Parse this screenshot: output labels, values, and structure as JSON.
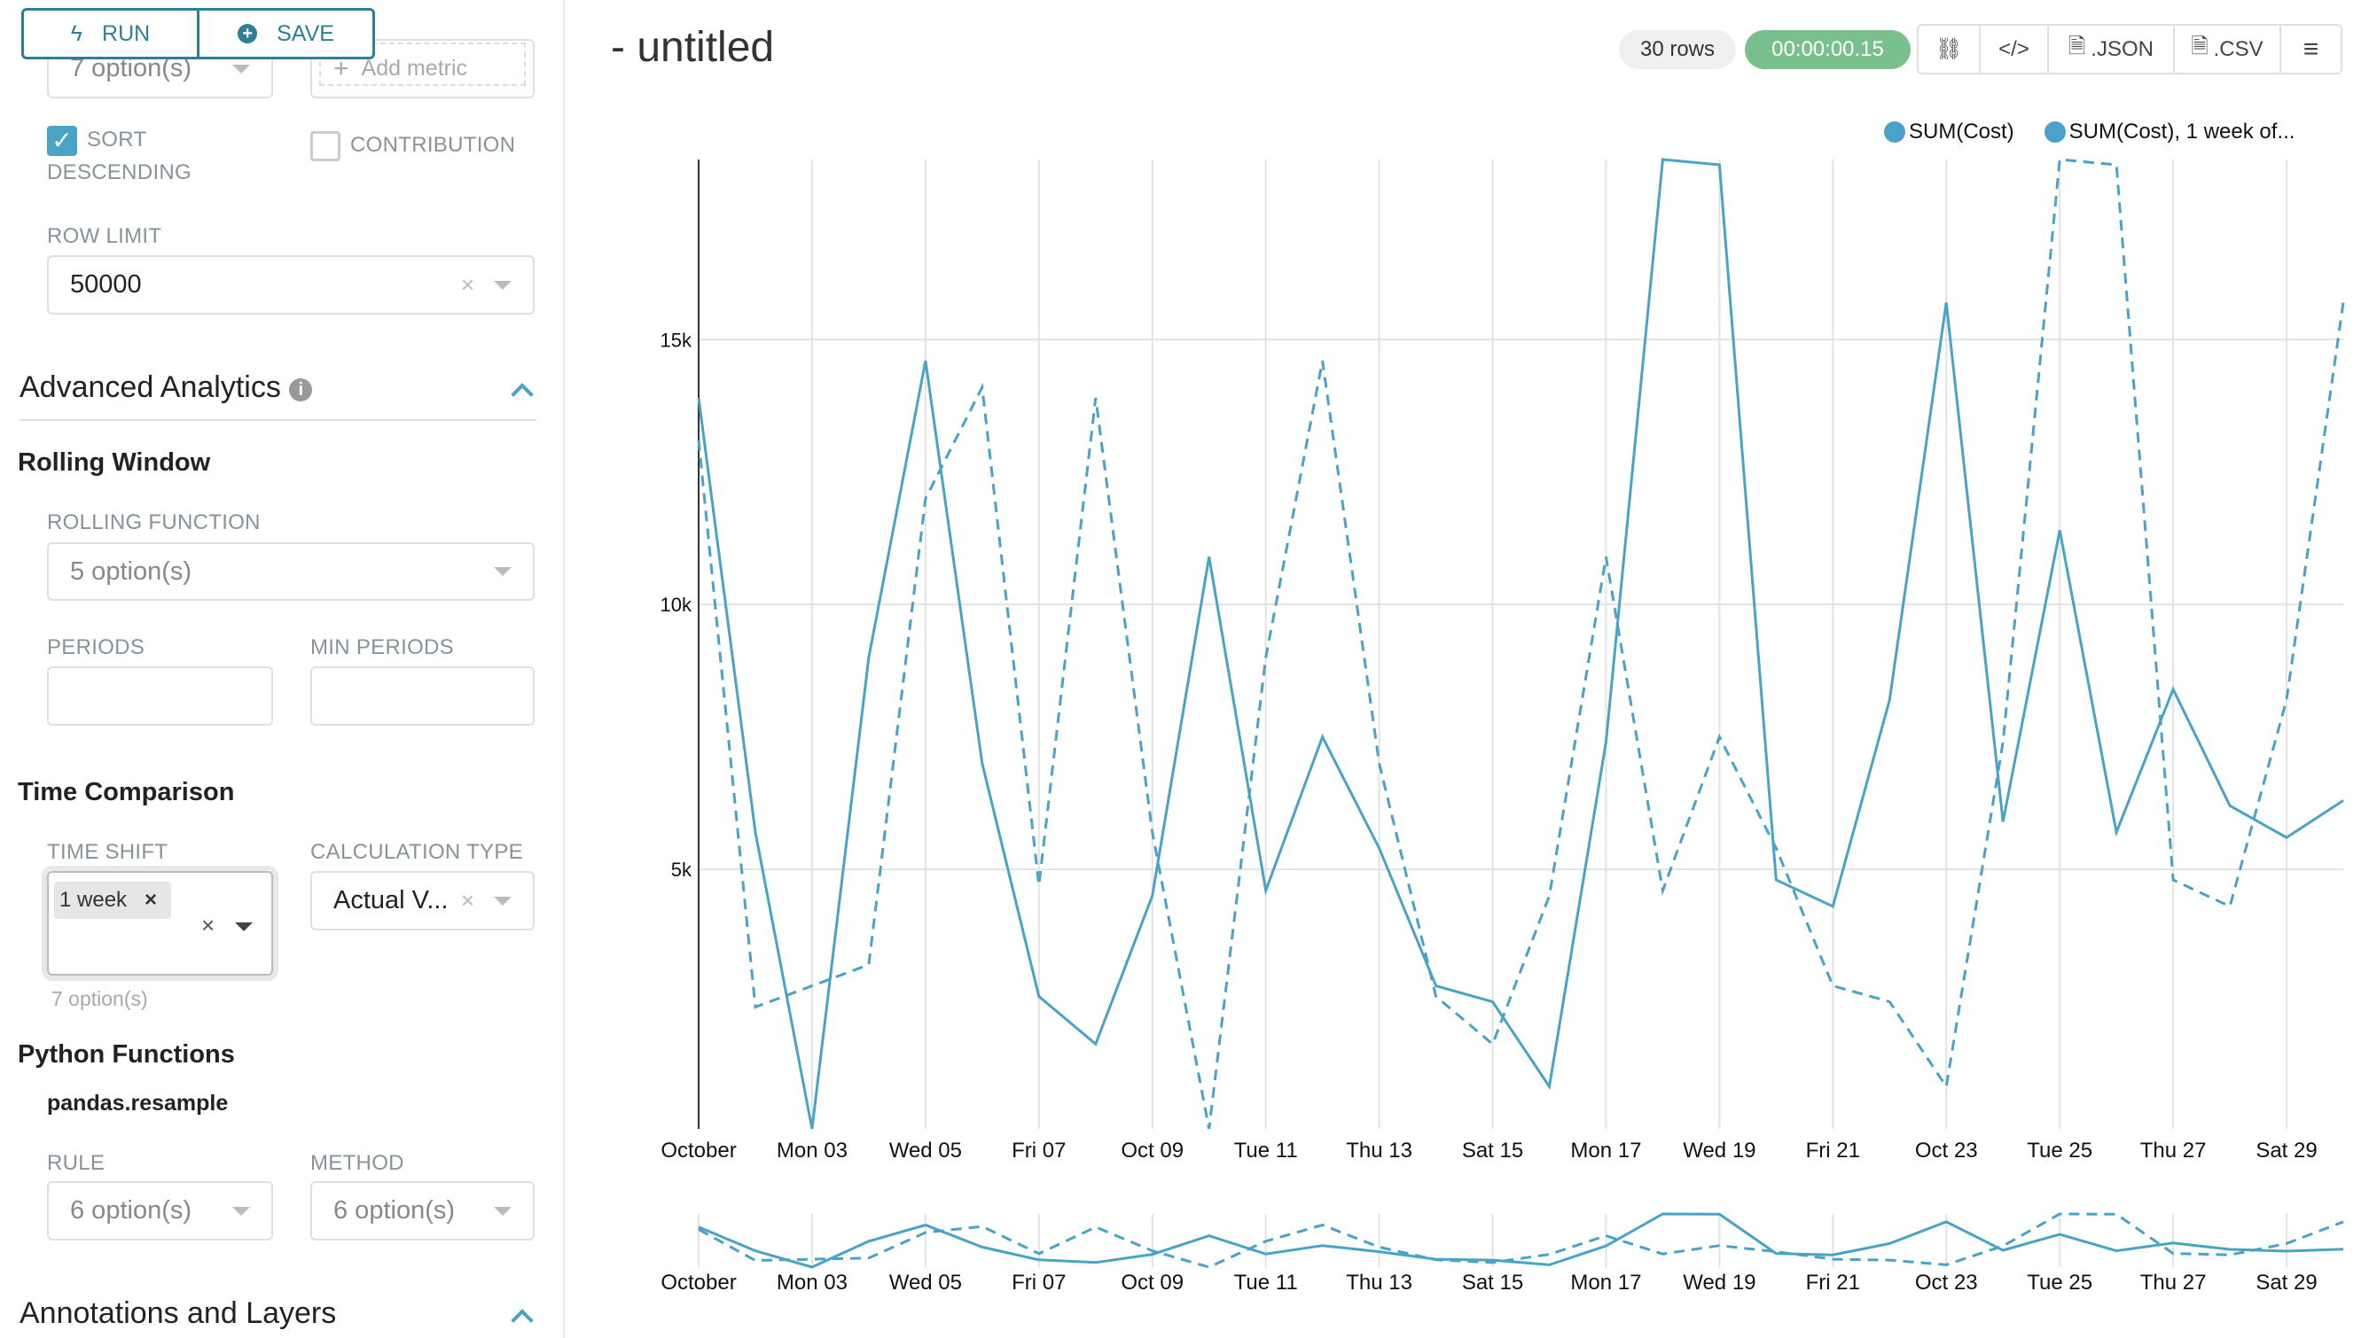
{
  "toolbar": {
    "run_label": "RUN",
    "save_label": "SAVE"
  },
  "sidebar": {
    "top_select": "7 option(s)",
    "add_metric": "Add metric",
    "sort_descending": {
      "label_1": "SORT",
      "label_2": "DESCENDING",
      "checked": true
    },
    "contribution": {
      "label": "CONTRIBUTION",
      "checked": false
    },
    "row_limit": {
      "label": "ROW LIMIT",
      "value": "50000"
    },
    "advanced_analytics": {
      "title": "Advanced Analytics",
      "rolling_window": {
        "title": "Rolling Window",
        "rolling_function_label": "ROLLING FUNCTION",
        "rolling_function_value": "5 option(s)",
        "periods_label": "PERIODS",
        "min_periods_label": "MIN PERIODS"
      },
      "time_comparison": {
        "title": "Time Comparison",
        "time_shift_label": "TIME SHIFT",
        "time_shift_tag": "1 week",
        "time_shift_help": "7 option(s)",
        "calc_type_label": "CALCULATION TYPE",
        "calc_type_value": "Actual V..."
      },
      "python_functions": {
        "title": "Python Functions",
        "subtitle": "pandas.resample",
        "rule_label": "RULE",
        "rule_value": "6 option(s)",
        "method_label": "METHOD",
        "method_value": "6 option(s)"
      }
    },
    "annotations": {
      "title": "Annotations and Layers"
    }
  },
  "header": {
    "title": "- untitled",
    "rows_badge": "30 rows",
    "timer_badge": "00:00:00.15",
    "json_label": ".JSON",
    "csv_label": ".CSV"
  },
  "colors": {
    "accent": "#2e7f9a",
    "series": "#48a3c6",
    "timer": "#78c08e",
    "checkbox": "#48a3c6"
  },
  "chart_data": {
    "type": "line",
    "x": [
      "2016-10-01",
      "2016-10-02",
      "2016-10-03",
      "2016-10-04",
      "2016-10-05",
      "2016-10-06",
      "2016-10-07",
      "2016-10-08",
      "2016-10-09",
      "2016-10-10",
      "2016-10-11",
      "2016-10-12",
      "2016-10-13",
      "2016-10-14",
      "2016-10-15",
      "2016-10-16",
      "2016-10-17",
      "2016-10-18",
      "2016-10-19",
      "2016-10-20",
      "2016-10-21",
      "2016-10-22",
      "2016-10-23",
      "2016-10-24",
      "2016-10-25",
      "2016-10-26",
      "2016-10-27",
      "2016-10-28",
      "2016-10-29",
      "2016-10-30"
    ],
    "x_tick_labels": [
      "October",
      "Mon 03",
      "Wed 05",
      "Fri 07",
      "Oct 09",
      "Tue 11",
      "Thu 13",
      "Sat 15",
      "Mon 17",
      "Wed 19",
      "Fri 21",
      "Oct 23",
      "Tue 25",
      "Thu 27",
      "Sat 29"
    ],
    "y_tick_labels": [
      "5k",
      "10k",
      "15k"
    ],
    "y_ticks": [
      5000,
      10000,
      15000
    ],
    "ylim": [
      100,
      18400
    ],
    "grid": true,
    "legend_position": "top-right",
    "series": [
      {
        "name": "SUM(Cost)",
        "style": "solid",
        "values": [
          13900,
          5700,
          100,
          9000,
          14600,
          7000,
          2600,
          1700,
          4500,
          10900,
          4600,
          7500,
          5400,
          2800,
          2500,
          900,
          7400,
          18400,
          18300,
          4800,
          4300,
          8200,
          15700,
          5900,
          11400,
          5700,
          8400,
          6200,
          5600,
          6300
        ]
      },
      {
        "name": "SUM(Cost), 1 week of...",
        "style": "dashed",
        "values": [
          13100,
          2400,
          2800,
          3200,
          12000,
          14100,
          4700,
          13900,
          5700,
          100,
          9000,
          14600,
          7000,
          2600,
          1700,
          4500,
          10900,
          4600,
          7500,
          5400,
          2800,
          2500,
          900,
          7400,
          18400,
          18300,
          4800,
          4300,
          8200,
          15700
        ]
      }
    ]
  }
}
